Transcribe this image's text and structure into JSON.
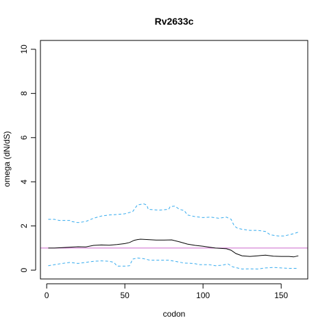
{
  "chart_data": {
    "type": "line",
    "title": "Rv2633c",
    "xlabel": "codon",
    "ylabel": "omega (dN/dS)",
    "xlim": [
      -4,
      167
    ],
    "ylim": [
      -0.4,
      10.4
    ],
    "x_ticks": [
      0,
      50,
      100,
      150
    ],
    "y_ticks": [
      0,
      2,
      4,
      6,
      8,
      10
    ],
    "reference_line": {
      "y": 1,
      "color": "#cc66cc"
    },
    "series": [
      {
        "style": "solid",
        "color": "#000000",
        "points": [
          [
            1,
            1.0
          ],
          [
            5,
            1.0
          ],
          [
            10,
            1.02
          ],
          [
            15,
            1.04
          ],
          [
            20,
            1.06
          ],
          [
            25,
            1.05
          ],
          [
            30,
            1.12
          ],
          [
            35,
            1.14
          ],
          [
            40,
            1.13
          ],
          [
            45,
            1.16
          ],
          [
            50,
            1.2
          ],
          [
            53,
            1.25
          ],
          [
            56,
            1.35
          ],
          [
            58,
            1.38
          ],
          [
            60,
            1.4
          ],
          [
            65,
            1.38
          ],
          [
            70,
            1.36
          ],
          [
            75,
            1.36
          ],
          [
            80,
            1.37
          ],
          [
            85,
            1.28
          ],
          [
            90,
            1.18
          ],
          [
            95,
            1.12
          ],
          [
            100,
            1.08
          ],
          [
            104,
            1.04
          ],
          [
            108,
            1.0
          ],
          [
            115,
            0.97
          ],
          [
            118,
            0.9
          ],
          [
            121,
            0.75
          ],
          [
            125,
            0.65
          ],
          [
            130,
            0.62
          ],
          [
            135,
            0.65
          ],
          [
            140,
            0.68
          ],
          [
            145,
            0.63
          ],
          [
            150,
            0.62
          ],
          [
            155,
            0.62
          ],
          [
            158,
            0.6
          ],
          [
            161,
            0.65
          ]
        ]
      },
      {
        "style": "dashed",
        "color": "#33aaee",
        "points": [
          [
            1,
            2.3
          ],
          [
            5,
            2.3
          ],
          [
            8,
            2.25
          ],
          [
            15,
            2.25
          ],
          [
            16,
            2.2
          ],
          [
            20,
            2.15
          ],
          [
            25,
            2.2
          ],
          [
            30,
            2.35
          ],
          [
            35,
            2.45
          ],
          [
            40,
            2.5
          ],
          [
            45,
            2.52
          ],
          [
            50,
            2.55
          ],
          [
            55,
            2.65
          ],
          [
            57,
            2.85
          ],
          [
            58,
            2.95
          ],
          [
            62,
            3.0
          ],
          [
            64,
            2.95
          ],
          [
            65,
            2.75
          ],
          [
            72,
            2.72
          ],
          [
            78,
            2.75
          ],
          [
            79,
            2.88
          ],
          [
            82,
            2.9
          ],
          [
            85,
            2.75
          ],
          [
            88,
            2.7
          ],
          [
            90,
            2.5
          ],
          [
            95,
            2.42
          ],
          [
            100,
            2.38
          ],
          [
            105,
            2.4
          ],
          [
            110,
            2.35
          ],
          [
            115,
            2.4
          ],
          [
            118,
            2.3
          ],
          [
            120,
            2.0
          ],
          [
            122,
            1.9
          ],
          [
            125,
            1.85
          ],
          [
            130,
            1.8
          ],
          [
            135,
            1.8
          ],
          [
            140,
            1.75
          ],
          [
            143,
            1.6
          ],
          [
            148,
            1.55
          ],
          [
            152,
            1.55
          ],
          [
            155,
            1.6
          ],
          [
            158,
            1.65
          ],
          [
            161,
            1.72
          ]
        ]
      },
      {
        "style": "dashed",
        "color": "#33aaee",
        "points": [
          [
            1,
            0.2
          ],
          [
            5,
            0.25
          ],
          [
            10,
            0.3
          ],
          [
            15,
            0.35
          ],
          [
            20,
            0.3
          ],
          [
            25,
            0.35
          ],
          [
            30,
            0.4
          ],
          [
            35,
            0.42
          ],
          [
            40,
            0.4
          ],
          [
            43,
            0.35
          ],
          [
            45,
            0.18
          ],
          [
            50,
            0.18
          ],
          [
            53,
            0.2
          ],
          [
            55,
            0.5
          ],
          [
            58,
            0.55
          ],
          [
            62,
            0.52
          ],
          [
            66,
            0.45
          ],
          [
            72,
            0.45
          ],
          [
            78,
            0.45
          ],
          [
            82,
            0.4
          ],
          [
            88,
            0.32
          ],
          [
            94,
            0.3
          ],
          [
            98,
            0.25
          ],
          [
            104,
            0.25
          ],
          [
            108,
            0.2
          ],
          [
            112,
            0.22
          ],
          [
            116,
            0.28
          ],
          [
            119,
            0.15
          ],
          [
            125,
            0.05
          ],
          [
            130,
            0.06
          ],
          [
            135,
            0.05
          ],
          [
            140,
            0.1
          ],
          [
            145,
            0.12
          ],
          [
            150,
            0.1
          ],
          [
            155,
            0.08
          ],
          [
            161,
            0.08
          ]
        ]
      }
    ]
  }
}
